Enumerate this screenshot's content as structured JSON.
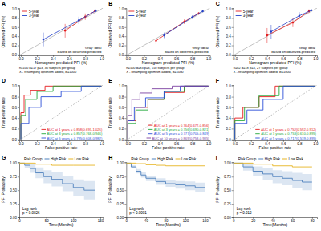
{
  "chart_data": [
    {
      "type": "calibration",
      "title": "A",
      "x_label": "Nomogram-predicted PFI (%)",
      "y_label": "Observed PFI (%)",
      "xlim": [
        -0.02,
        1.02
      ],
      "ylim": [
        -0.02,
        1.02
      ],
      "xticks": [
        {
          "value": 0,
          "label": "0.0"
        },
        0.2,
        0.4,
        0.6,
        0.8,
        {
          "value": 1,
          "label": "1.0"
        }
      ],
      "yticks": [
        {
          "value": 0,
          "label": "0.0"
        },
        0.2,
        0.4,
        0.6,
        0.8,
        {
          "value": 1,
          "label": "1.0"
        }
      ],
      "legend": "top-left",
      "annotations": [
        "Gray: ideal",
        "Based on observed-predicted",
        "n=100 d=17 p=3, 30 subjects per group",
        "X - resampling optimism added, B=1000"
      ],
      "series": [
        {
          "name": "5-year",
          "color": "#E41A1C",
          "x": [
            0.55,
            0.8,
            0.92
          ],
          "values": [
            0.52,
            0.83,
            0.95
          ],
          "errors": [
            0.15,
            0.07,
            0.04
          ]
        },
        {
          "name": "3-year",
          "color": "#2440C8",
          "x": [
            0.28,
            0.72,
            0.93
          ],
          "values": [
            0.33,
            0.75,
            0.96
          ],
          "errors": [
            0.15,
            0.08,
            0.03
          ]
        }
      ]
    },
    {
      "type": "calibration",
      "title": "B",
      "x_label": "Nomogram-predicted PFI (%)",
      "y_label": "Observed PFI (%)",
      "xlim": [
        -0.02,
        1.02
      ],
      "ylim": [
        -0.02,
        1.02
      ],
      "xticks": [
        {
          "value": 0,
          "label": "0.0"
        },
        0.2,
        0.4,
        0.6,
        0.8,
        {
          "value": 1,
          "label": "1.0"
        }
      ],
      "yticks": [
        {
          "value": 0,
          "label": "0.0"
        },
        0.2,
        0.4,
        0.6,
        0.8,
        {
          "value": 1,
          "label": "1.0"
        }
      ],
      "legend": "top-left",
      "annotations": [
        "Gray: ideal",
        "Based on observed-predicted",
        "n=500 d=83 p=3, 150 subjects per group",
        "X - resampling optimism added, B=1000"
      ],
      "series": [
        {
          "name": "5-year",
          "color": "#E41A1C",
          "x": [
            0.35,
            0.7,
            0.88
          ],
          "values": [
            0.3,
            0.72,
            0.9
          ],
          "errors": [
            0.07,
            0.05,
            0.03
          ]
        },
        {
          "name": "3-year",
          "color": "#2440C8",
          "x": [
            0.45,
            0.8,
            0.93
          ],
          "values": [
            0.42,
            0.82,
            0.95
          ],
          "errors": [
            0.06,
            0.04,
            0.02
          ]
        }
      ]
    },
    {
      "type": "calibration",
      "title": "C",
      "x_label": "Nomogram-predicted PFI (%)",
      "y_label": "Observed PFI (%)",
      "xlim": [
        -0.02,
        1.02
      ],
      "ylim": [
        -0.02,
        1.02
      ],
      "xticks": [
        {
          "value": 0,
          "label": "0.0"
        },
        0.2,
        0.4,
        0.6,
        0.8,
        {
          "value": 1,
          "label": "1.0"
        }
      ],
      "yticks": [
        {
          "value": 0,
          "label": "0.0"
        },
        0.2,
        0.4,
        0.6,
        0.8,
        {
          "value": 1,
          "label": "1.0"
        }
      ],
      "legend": "top-left",
      "annotations": [
        "Gray: ideal",
        "Based on observed-predicted",
        "n=82 d=18 p=3, 27 subjects per group",
        "X - resampling optimism added, B=1000"
      ],
      "series": [
        {
          "name": "5-year",
          "color": "#E41A1C",
          "x": [
            0.4,
            0.72,
            0.92
          ],
          "values": [
            0.42,
            0.7,
            0.95
          ],
          "errors": [
            0.16,
            0.1,
            0.04
          ]
        },
        {
          "name": "3-year",
          "color": "#2440C8",
          "x": [
            0.45,
            0.8,
            0.95
          ],
          "values": [
            0.5,
            0.85,
            0.97
          ],
          "errors": [
            0.15,
            0.08,
            0.03
          ]
        }
      ]
    },
    {
      "type": "roc",
      "title": "D",
      "x_label": "False positive rate",
      "y_label": "True positive rate",
      "xlim": [
        -0.02,
        1.02
      ],
      "ylim": [
        -0.02,
        1.02
      ],
      "xticks": [
        {
          "value": 0,
          "label": "0.0"
        },
        0.2,
        0.4,
        0.6,
        0.8,
        {
          "value": 1,
          "label": "1.0"
        }
      ],
      "yticks": [
        {
          "value": 0,
          "label": "0.0"
        },
        0.2,
        0.4,
        0.6,
        0.8,
        {
          "value": 1,
          "label": "1.0"
        }
      ],
      "legend": "bottom-right",
      "series": [
        {
          "name": "AUC at 1 years = 0.858(0.693-1.026)",
          "color": "#E41A1C",
          "x": [
            0,
            0,
            0.04,
            0.04,
            0.12,
            0.12,
            0.3,
            0.3,
            1
          ],
          "values": [
            0,
            0.5,
            0.5,
            0.83,
            0.83,
            0.92,
            0.92,
            1,
            1
          ]
        },
        {
          "name": "AUC at 3 years = 0.857(0.768-0.946)",
          "color": "#22A83A",
          "x": [
            0,
            0,
            0.06,
            0.06,
            0.2,
            0.2,
            0.4,
            0.4,
            1
          ],
          "values": [
            0,
            0.45,
            0.45,
            0.75,
            0.75,
            0.9,
            0.9,
            1,
            1
          ]
        },
        {
          "name": "AUC at 5 years = 0.795(0.608-0.982)",
          "color": "#2B4FD8",
          "x": [
            0,
            0,
            0.1,
            0.1,
            0.25,
            0.25,
            0.5,
            0.5,
            0.75,
            0.75,
            1
          ],
          "values": [
            0,
            0.3,
            0.3,
            0.6,
            0.6,
            0.8,
            0.8,
            0.9,
            0.9,
            1,
            1
          ]
        }
      ]
    },
    {
      "type": "roc",
      "title": "E",
      "x_label": "False positive rate",
      "y_label": "True positive rate",
      "xlim": [
        -0.02,
        1.02
      ],
      "ylim": [
        -0.02,
        1.02
      ],
      "xticks": [
        {
          "value": 0,
          "label": "0.0"
        },
        0.2,
        0.4,
        0.6,
        0.8,
        {
          "value": 1,
          "label": "1.0"
        }
      ],
      "yticks": [
        {
          "value": 0,
          "label": "0.0"
        },
        0.2,
        0.4,
        0.6,
        0.8,
        {
          "value": 1,
          "label": "1.0"
        }
      ],
      "legend": "bottom-right",
      "series": [
        {
          "name": "AUC at 1 years = 0.764(0.672-0.856)",
          "color": "#E41A1C",
          "x": [
            0,
            0,
            0.1,
            0.1,
            0.25,
            0.25,
            0.45,
            0.45,
            0.7,
            0.7,
            1
          ],
          "values": [
            0,
            0.35,
            0.35,
            0.6,
            0.6,
            0.75,
            0.75,
            0.88,
            0.88,
            1,
            1
          ]
        },
        {
          "name": "AUC at 3 years = 0.756(0.690-0.821)",
          "color": "#22A83A",
          "x": [
            0,
            0,
            0.1,
            0.1,
            0.25,
            0.25,
            0.45,
            0.45,
            0.7,
            0.7,
            1
          ],
          "values": [
            0,
            0.3,
            0.3,
            0.55,
            0.55,
            0.75,
            0.75,
            0.9,
            0.9,
            1,
            1
          ]
        },
        {
          "name": "AUC at 5 years = 0.777(0.705-0.849)",
          "color": "#2B4FD8",
          "x": [
            0,
            0,
            0.08,
            0.08,
            0.22,
            0.22,
            0.45,
            0.45,
            0.65,
            0.65,
            1
          ],
          "values": [
            0,
            0.35,
            0.35,
            0.6,
            0.6,
            0.78,
            0.78,
            0.9,
            0.9,
            1,
            1
          ]
        },
        {
          "name": "AUC at 10 years = 0.869(0.753-0.985)",
          "color": "#7B3FA0",
          "x": [
            0,
            0,
            0.05,
            0.05,
            0.15,
            0.15,
            0.3,
            0.3,
            0.55,
            0.55,
            1
          ],
          "values": [
            0,
            0.45,
            0.45,
            0.75,
            0.75,
            0.87,
            0.87,
            0.95,
            0.95,
            1,
            1
          ]
        }
      ]
    },
    {
      "type": "roc",
      "title": "F",
      "x_label": "False positive rate",
      "y_label": "True positive rate",
      "xlim": [
        -0.02,
        1.02
      ],
      "ylim": [
        -0.02,
        1.02
      ],
      "xticks": [
        {
          "value": 0,
          "label": "0.0"
        },
        0.2,
        0.4,
        0.6,
        0.8,
        {
          "value": 1,
          "label": "1.0"
        }
      ],
      "yticks": [
        {
          "value": 0,
          "label": "0.0"
        },
        0.2,
        0.4,
        0.6,
        0.8,
        {
          "value": 1,
          "label": "1.0"
        }
      ],
      "legend": "bottom-right",
      "series": [
        {
          "name": "AUC at 1 years = 0.752(0.592-0.912)",
          "color": "#E41A1C",
          "x": [
            0,
            0,
            0.1,
            0.1,
            0.3,
            0.3,
            0.5,
            0.5,
            1
          ],
          "values": [
            0,
            0.4,
            0.4,
            0.6,
            0.6,
            0.8,
            0.8,
            1,
            1
          ]
        },
        {
          "name": "AUC at 3 years = 0.753(0.610-0.895)",
          "color": "#22A83A",
          "x": [
            0,
            0,
            0.12,
            0.12,
            0.3,
            0.3,
            0.55,
            0.55,
            1
          ],
          "values": [
            0,
            0.35,
            0.35,
            0.6,
            0.6,
            0.82,
            0.82,
            1,
            1
          ]
        },
        {
          "name": "AUC at 5 years = 0.717(0.539-0.895)",
          "color": "#2B4FD8",
          "x": [
            0,
            0,
            0.15,
            0.15,
            0.35,
            0.35,
            0.6,
            0.6,
            1
          ],
          "values": [
            0,
            0.3,
            0.3,
            0.55,
            0.55,
            0.75,
            0.75,
            1,
            1
          ]
        }
      ]
    },
    {
      "type": "km",
      "title": "G",
      "x_label": "Time(Months)",
      "y_label": "PFI Probability",
      "xlim": [
        0,
        155
      ],
      "ylim": [
        0,
        1.02
      ],
      "xticks": [
        0,
        50,
        100,
        150
      ],
      "yticks": [
        {
          "value": 0,
          "label": "0.00"
        },
        0.25,
        {
          "value": 0.5,
          "label": "0.50"
        },
        0.75,
        {
          "value": 1,
          "label": "1.00"
        }
      ],
      "legend": "top",
      "legend_title": "Risk Group",
      "annotations": [
        "Log-rank",
        "p = 0.0026"
      ],
      "series": [
        {
          "name": "High Risk",
          "color": "#4F81BD",
          "x": [
            0,
            10,
            20,
            30,
            45,
            60,
            80,
            100,
            120,
            140
          ],
          "values": [
            1,
            0.96,
            0.9,
            0.82,
            0.75,
            0.7,
            0.62,
            0.55,
            0.5,
            0.5
          ],
          "lower": [
            1,
            0.9,
            0.82,
            0.72,
            0.63,
            0.57,
            0.48,
            0.4,
            0.33,
            0.33
          ],
          "upper": [
            1,
            1,
            0.98,
            0.92,
            0.87,
            0.83,
            0.76,
            0.7,
            0.67,
            0.67
          ]
        },
        {
          "name": "Low Risk",
          "color": "#E6B422",
          "x": [
            0,
            30,
            60,
            100,
            140
          ],
          "values": [
            1,
            0.98,
            0.96,
            0.96,
            0.96
          ]
        }
      ]
    },
    {
      "type": "km",
      "title": "H",
      "x_label": "Time(Months)",
      "y_label": "PFI Probability",
      "xlim": [
        0,
        170
      ],
      "ylim": [
        0,
        1.02
      ],
      "xticks": [
        0,
        40,
        80,
        120,
        160
      ],
      "yticks": [
        {
          "value": 0,
          "label": "0.00"
        },
        0.25,
        {
          "value": 0.5,
          "label": "0.50"
        },
        0.75,
        {
          "value": 1,
          "label": "1.00"
        }
      ],
      "legend": "top",
      "legend_title": "Risk Group",
      "annotations": [
        "Log-rank",
        "p < 0.0001"
      ],
      "series": [
        {
          "name": "High Risk",
          "color": "#4F81BD",
          "x": [
            0,
            10,
            20,
            30,
            40,
            60,
            80,
            100,
            120,
            140,
            160
          ],
          "values": [
            1,
            0.93,
            0.85,
            0.78,
            0.72,
            0.66,
            0.62,
            0.6,
            0.58,
            0.55,
            0.55
          ],
          "lower": [
            1,
            0.9,
            0.81,
            0.73,
            0.67,
            0.6,
            0.56,
            0.53,
            0.5,
            0.46,
            0.46
          ],
          "upper": [
            1,
            0.96,
            0.89,
            0.83,
            0.77,
            0.72,
            0.68,
            0.67,
            0.66,
            0.64,
            0.64
          ]
        },
        {
          "name": "Low Risk",
          "color": "#E6B422",
          "x": [
            0,
            20,
            40,
            60,
            80,
            120,
            160
          ],
          "values": [
            1,
            0.99,
            0.97,
            0.96,
            0.95,
            0.95,
            0.95
          ]
        }
      ]
    },
    {
      "type": "km",
      "title": "I",
      "x_label": "Time(Months)",
      "y_label": "PFI Probability",
      "xlim": [
        0,
        85
      ],
      "ylim": [
        0,
        1.02
      ],
      "xticks": [
        0,
        20,
        40,
        60,
        80
      ],
      "yticks": [
        {
          "value": 0,
          "label": "0.00"
        },
        0.25,
        {
          "value": 0.5,
          "label": "0.50"
        },
        0.75,
        {
          "value": 1,
          "label": "1.00"
        }
      ],
      "legend": "top",
      "legend_title": "Risk Group",
      "annotations": [
        "Log-rank",
        "p = 0.012"
      ],
      "series": [
        {
          "name": "High Risk",
          "color": "#4F81BD",
          "x": [
            0,
            10,
            20,
            30,
            40,
            50,
            60,
            70,
            80
          ],
          "values": [
            1,
            0.93,
            0.85,
            0.8,
            0.75,
            0.72,
            0.68,
            0.65,
            0.65
          ],
          "lower": [
            1,
            0.86,
            0.76,
            0.69,
            0.63,
            0.59,
            0.54,
            0.5,
            0.5
          ],
          "upper": [
            1,
            1,
            0.94,
            0.91,
            0.87,
            0.85,
            0.82,
            0.8,
            0.8
          ]
        },
        {
          "name": "Low Risk",
          "color": "#E6B422",
          "x": [
            0,
            20,
            40,
            60,
            80
          ],
          "values": [
            1,
            0.98,
            0.95,
            0.93,
            0.93
          ]
        }
      ]
    }
  ]
}
